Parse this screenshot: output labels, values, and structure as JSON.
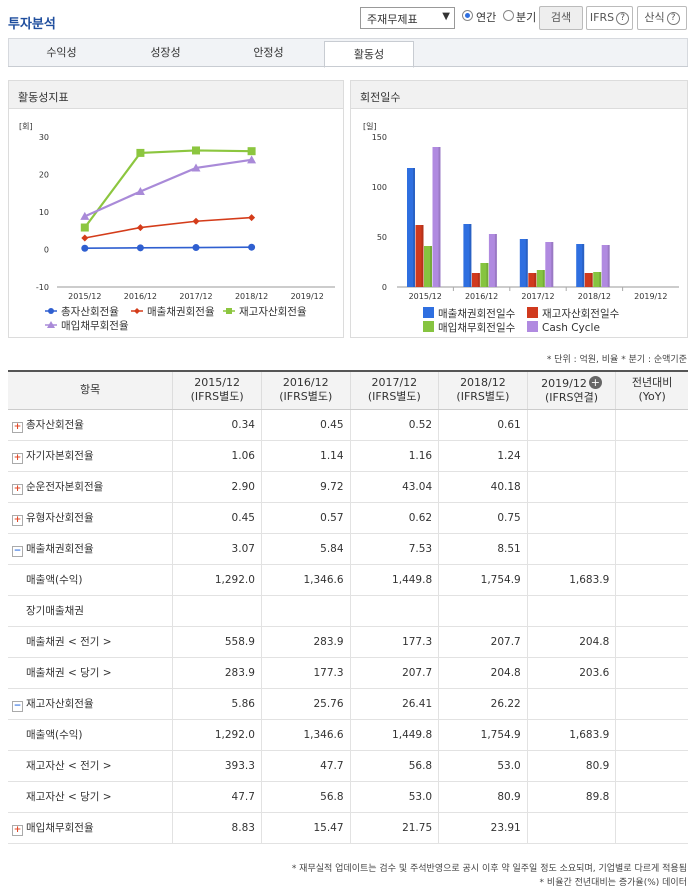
{
  "header": {
    "title": "투자분석",
    "statement_select": "주재무제표",
    "radio_annual": "연간",
    "radio_quarter": "분기",
    "search_button": "검색",
    "ifrs_button": "IFRS",
    "formula_button": "산식",
    "help_mark": "?"
  },
  "tabs": [
    "수익성",
    "성장성",
    "안정성",
    "활동성"
  ],
  "active_tab": "활동성",
  "chart_left_title": "활동성지표",
  "chart_right_title": "회전일수",
  "chart_data": [
    {
      "type": "line",
      "title": "활동성지표",
      "ylabel": "[회]",
      "categories": [
        "2015/12",
        "2016/12",
        "2017/12",
        "2018/12",
        "2019/12"
      ],
      "ylim": [
        -10,
        30
      ],
      "yticks": [
        "30",
        "20",
        "10",
        "0",
        "-10"
      ],
      "series": [
        {
          "name": "총자산회전율",
          "color": "#2f5fd0",
          "marker": "circle",
          "values": [
            0.34,
            0.45,
            0.52,
            0.61,
            null
          ]
        },
        {
          "name": "매출채권회전율",
          "color": "#d43c1a",
          "marker": "diamond",
          "values": [
            3.07,
            5.84,
            7.53,
            8.51,
            null
          ]
        },
        {
          "name": "재고자산회전율",
          "color": "#8cc63f",
          "marker": "square",
          "values": [
            5.86,
            25.76,
            26.41,
            26.22,
            null
          ]
        },
        {
          "name": "매입채무회전율",
          "color": "#a98ad8",
          "marker": "triangle",
          "values": [
            8.83,
            15.47,
            21.75,
            23.91,
            null
          ]
        }
      ]
    },
    {
      "type": "bar",
      "title": "회전일수",
      "ylabel": "[일]",
      "categories": [
        "2015/12",
        "2016/12",
        "2017/12",
        "2018/12",
        "2019/12"
      ],
      "ylim": [
        0,
        150
      ],
      "yticks": [
        "150",
        "100",
        "50",
        "0"
      ],
      "series": [
        {
          "name": "매출채권회전일수",
          "color": "#2f6fe0",
          "values": [
            119,
            63,
            48,
            43,
            null
          ]
        },
        {
          "name": "재고자산회전일수",
          "color": "#d03a1e",
          "values": [
            62,
            14,
            14,
            14,
            null
          ]
        },
        {
          "name": "매입채무회전일수",
          "color": "#86c440",
          "values": [
            41,
            24,
            17,
            15,
            null
          ]
        },
        {
          "name": "Cash Cycle",
          "color": "#b08ae0",
          "values": [
            140,
            53,
            45,
            42,
            null
          ]
        }
      ]
    }
  ],
  "unit_note": "* 단위 : 억원, 비율   * 분기 : 순액기준",
  "table": {
    "columns": [
      "항목",
      [
        "2015/12",
        "(IFRS별도)"
      ],
      [
        "2016/12",
        "(IFRS별도)"
      ],
      [
        "2017/12",
        "(IFRS별도)"
      ],
      [
        "2018/12",
        "(IFRS별도)"
      ],
      [
        "2019/12",
        "(IFRS연결)"
      ],
      [
        "전년대비",
        "(YoY)"
      ]
    ],
    "rows": [
      {
        "label": "총자산회전율",
        "toggle": "plus",
        "values": [
          "0.34",
          "0.45",
          "0.52",
          "0.61",
          "",
          ""
        ]
      },
      {
        "label": "자기자본회전율",
        "toggle": "plus",
        "values": [
          "1.06",
          "1.14",
          "1.16",
          "1.24",
          "",
          ""
        ]
      },
      {
        "label": "순운전자본회전율",
        "toggle": "plus",
        "values": [
          "2.90",
          "9.72",
          "43.04",
          "40.18",
          "",
          ""
        ]
      },
      {
        "label": "유형자산회전율",
        "toggle": "plus",
        "values": [
          "0.45",
          "0.57",
          "0.62",
          "0.75",
          "",
          ""
        ]
      },
      {
        "label": "매출채권회전율",
        "toggle": "minus",
        "values": [
          "3.07",
          "5.84",
          "7.53",
          "8.51",
          "",
          ""
        ]
      },
      {
        "label": "매출액(수익)",
        "toggle": "",
        "values": [
          "1,292.0",
          "1,346.6",
          "1,449.8",
          "1,754.9",
          "1,683.9",
          ""
        ]
      },
      {
        "label": "장기매출채권",
        "toggle": "",
        "values": [
          "",
          "",
          "",
          "",
          "",
          ""
        ]
      },
      {
        "label": "매출채권 < 전기 >",
        "toggle": "",
        "values": [
          "558.9",
          "283.9",
          "177.3",
          "207.7",
          "204.8",
          ""
        ]
      },
      {
        "label": "매출채권 < 당기 >",
        "toggle": "",
        "values": [
          "283.9",
          "177.3",
          "207.7",
          "204.8",
          "203.6",
          ""
        ]
      },
      {
        "label": "재고자산회전율",
        "toggle": "minus",
        "values": [
          "5.86",
          "25.76",
          "26.41",
          "26.22",
          "",
          ""
        ]
      },
      {
        "label": "매출액(수익)",
        "toggle": "",
        "values": [
          "1,292.0",
          "1,346.6",
          "1,449.8",
          "1,754.9",
          "1,683.9",
          ""
        ]
      },
      {
        "label": "재고자산 < 전기 >",
        "toggle": "",
        "values": [
          "393.3",
          "47.7",
          "56.8",
          "53.0",
          "80.9",
          ""
        ]
      },
      {
        "label": "재고자산 < 당기 >",
        "toggle": "",
        "values": [
          "47.7",
          "56.8",
          "53.0",
          "80.9",
          "89.8",
          ""
        ]
      },
      {
        "label": "매입채무회전율",
        "toggle": "plus",
        "values": [
          "8.83",
          "15.47",
          "21.75",
          "23.91",
          "",
          ""
        ]
      }
    ]
  },
  "footnotes": [
    "* 재무실적 업데이트는 검수 및 주석반영으로 공시 이후 약 일주일 정도 소요되며, 기업별로 다르게 적용됨",
    "* 비율간 전년대비는 증가율(%) 데이터"
  ]
}
